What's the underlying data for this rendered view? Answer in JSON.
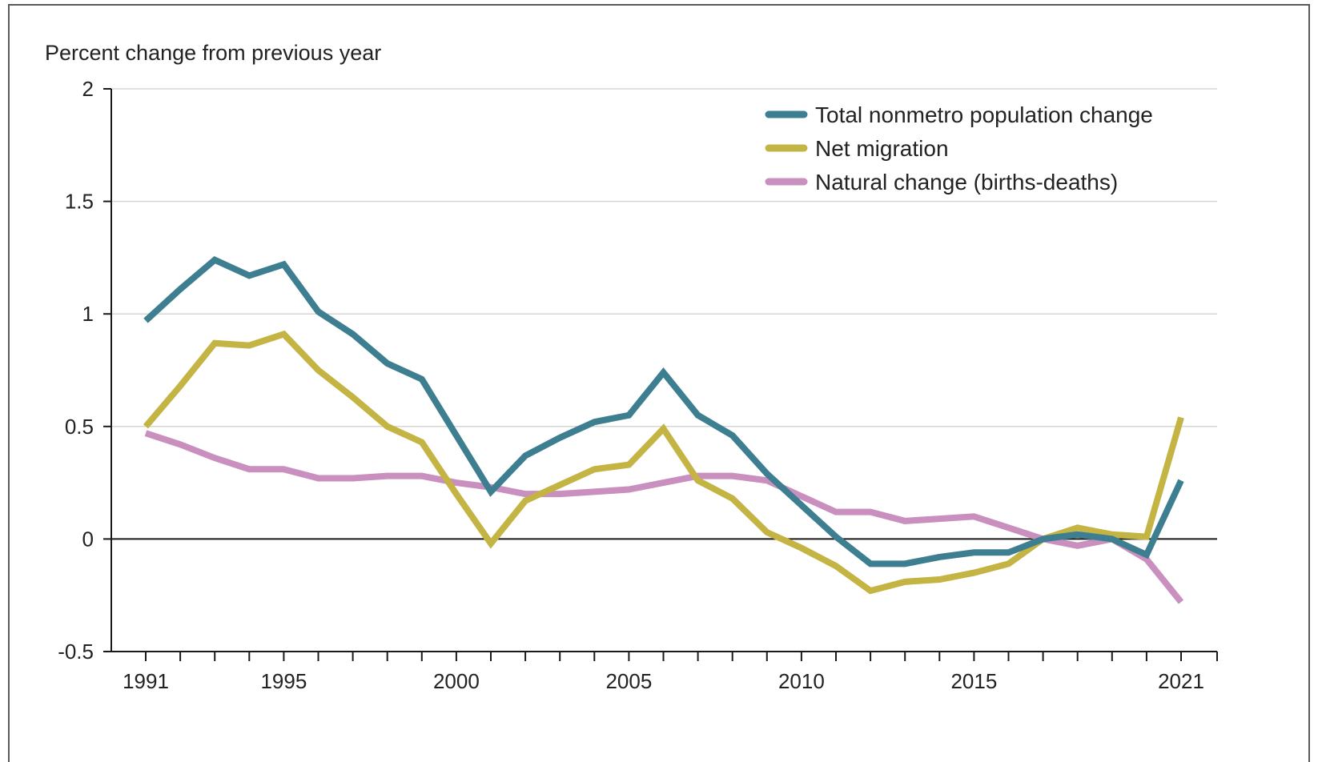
{
  "chart_data": {
    "type": "line",
    "title": "",
    "ylabel": "Percent change from previous year",
    "xlabel": "",
    "ylim": [
      -0.5,
      2
    ],
    "xlim": [
      1991,
      2021
    ],
    "yticks": [
      -0.5,
      0,
      0.5,
      1,
      1.5,
      2
    ],
    "ytick_labels": [
      "-0.5",
      "0",
      "0.5",
      "1",
      "1.5",
      "2"
    ],
    "xtick_labels": [
      {
        "year": 1991,
        "label": "1991"
      },
      {
        "year": 1995,
        "label": "1995"
      },
      {
        "year": 2000,
        "label": "2000"
      },
      {
        "year": 2005,
        "label": "2005"
      },
      {
        "year": 2010,
        "label": "2010"
      },
      {
        "year": 2015,
        "label": "2015"
      },
      {
        "year": 2021,
        "label": "2021"
      }
    ],
    "grid": true,
    "legend_position": "top-right",
    "x": [
      1991,
      1992,
      1993,
      1994,
      1995,
      1996,
      1997,
      1998,
      1999,
      2000,
      2001,
      2002,
      2003,
      2004,
      2005,
      2006,
      2007,
      2008,
      2009,
      2010,
      2011,
      2012,
      2013,
      2014,
      2015,
      2016,
      2017,
      2018,
      2019,
      2020,
      2021
    ],
    "series": [
      {
        "name": "Total nonmetro population change",
        "color": "#3d7f91",
        "values": [
          0.97,
          1.11,
          1.24,
          1.17,
          1.22,
          1.01,
          0.91,
          0.78,
          0.71,
          0.46,
          0.21,
          0.37,
          0.45,
          0.52,
          0.55,
          0.74,
          0.55,
          0.46,
          0.29,
          0.15,
          0.01,
          -0.11,
          -0.11,
          -0.08,
          -0.06,
          -0.06,
          0.0,
          0.02,
          0.0,
          -0.07,
          0.26
        ]
      },
      {
        "name": "Net migration",
        "color": "#c3b444",
        "values": [
          0.5,
          0.68,
          0.87,
          0.86,
          0.91,
          0.75,
          0.63,
          0.5,
          0.43,
          0.2,
          -0.02,
          0.17,
          0.24,
          0.31,
          0.33,
          0.49,
          0.26,
          0.18,
          0.03,
          -0.04,
          -0.12,
          -0.23,
          -0.19,
          -0.18,
          -0.15,
          -0.11,
          0.0,
          0.05,
          0.02,
          0.01,
          0.54
        ]
      },
      {
        "name": "Natural change (births-deaths)",
        "color": "#c98fbe",
        "values": [
          0.47,
          0.42,
          0.36,
          0.31,
          0.31,
          0.27,
          0.27,
          0.28,
          0.28,
          0.25,
          0.23,
          0.2,
          0.2,
          0.21,
          0.22,
          0.25,
          0.28,
          0.28,
          0.26,
          0.19,
          0.12,
          0.12,
          0.08,
          0.09,
          0.1,
          0.05,
          0.0,
          -0.03,
          0.0,
          -0.09,
          -0.28
        ]
      }
    ]
  }
}
